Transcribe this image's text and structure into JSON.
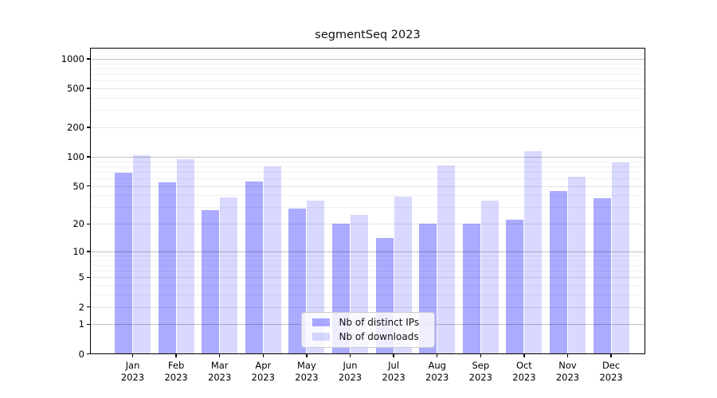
{
  "chart_data": {
    "type": "bar",
    "title": "segmentSeq 2023",
    "categories": [
      "Jan",
      "Feb",
      "Mar",
      "Apr",
      "May",
      "Jun",
      "Jul",
      "Aug",
      "Sep",
      "Oct",
      "Nov",
      "Dec"
    ],
    "year_label": "2023",
    "series": [
      {
        "name": "Nb of distinct IPs",
        "color": "rgba(0,0,255,0.33)",
        "values": [
          68,
          55,
          28,
          56,
          29,
          20,
          14,
          20,
          20,
          22,
          44,
          37
        ]
      },
      {
        "name": "Nb of downloads",
        "color": "rgba(0,0,255,0.15)",
        "values": [
          104,
          95,
          38,
          79,
          35,
          25,
          39,
          81,
          35,
          115,
          62,
          88
        ]
      }
    ],
    "xlabel": "",
    "ylabel": "",
    "y_scale": "log10(value+1)",
    "y_ticks": [
      0,
      1,
      2,
      5,
      10,
      20,
      50,
      100,
      200,
      500,
      1000
    ],
    "ylim": [
      0,
      1300
    ],
    "grid": true,
    "legend_position": "lower center"
  }
}
